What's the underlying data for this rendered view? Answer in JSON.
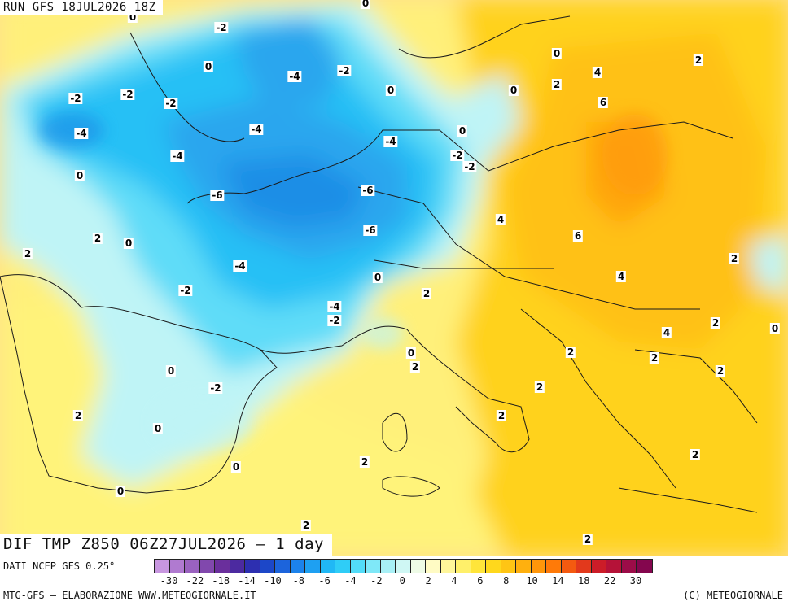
{
  "run_label": "RUN GFS 18JUL2026 18Z",
  "map_title": "DIF TMP Z850 06Z27JUL2026 – 1 day",
  "footer": {
    "source": "DATI NCEP GFS 0.25°",
    "credit": "MTG-GFS – ELABORAZIONE WWW.METEOGIORNALE.IT",
    "copyright": "(C) METEOGIORNALE"
  },
  "scale": {
    "colors": [
      "#c897e0",
      "#b07ad0",
      "#9a62bf",
      "#8148ad",
      "#6a2f9c",
      "#4c2aa0",
      "#2d2fb0",
      "#1c47c8",
      "#1c64dc",
      "#1c82eb",
      "#1ea0f2",
      "#20b8f5",
      "#2fcdf7",
      "#52dcf8",
      "#7fe8f8",
      "#a8f0f6",
      "#cff7f4",
      "#eefbe6",
      "#fffbc4",
      "#fff69a",
      "#fff06a",
      "#ffe53a",
      "#ffd81c",
      "#ffc514",
      "#ffb00e",
      "#ff960a",
      "#ff7a08",
      "#f45a10",
      "#e2391c",
      "#cc1c28",
      "#b51238",
      "#9c0c48",
      "#84064e"
    ],
    "ticks": [
      "-30",
      "-22",
      "-18",
      "-14",
      "-10",
      "-8",
      "-6",
      "-4",
      "-2",
      "0",
      "2",
      "4",
      "6",
      "8",
      "10",
      "14",
      "18",
      "22",
      "30"
    ]
  },
  "contour_labels": [
    {
      "text": "0",
      "lon": 163,
      "lat": 21
    },
    {
      "text": "0",
      "lon": 449,
      "lat": 4
    },
    {
      "text": "-2",
      "lon": 272,
      "lat": 34
    },
    {
      "text": "0",
      "lon": 256,
      "lat": 82
    },
    {
      "text": "-4",
      "lon": 362,
      "lat": 94
    },
    {
      "text": "-2",
      "lon": 423,
      "lat": 87
    },
    {
      "text": "0",
      "lon": 684,
      "lat": 66
    },
    {
      "text": "4",
      "lon": 734,
      "lat": 89
    },
    {
      "text": "2",
      "lon": 858,
      "lat": 74
    },
    {
      "text": "2",
      "lon": 684,
      "lat": 104
    },
    {
      "text": "0",
      "lon": 631,
      "lat": 111
    },
    {
      "text": "0",
      "lon": 480,
      "lat": 111
    },
    {
      "text": "-2",
      "lon": 93,
      "lat": 121
    },
    {
      "text": "-2",
      "lon": 157,
      "lat": 116
    },
    {
      "text": "-2",
      "lon": 210,
      "lat": 127
    },
    {
      "text": "6",
      "lon": 741,
      "lat": 126
    },
    {
      "text": "-4",
      "lon": 100,
      "lat": 164
    },
    {
      "text": "-4",
      "lon": 315,
      "lat": 159
    },
    {
      "text": "0",
      "lon": 568,
      "lat": 161
    },
    {
      "text": "-4",
      "lon": 480,
      "lat": 174
    },
    {
      "text": "-4",
      "lon": 218,
      "lat": 192
    },
    {
      "text": "-2",
      "lon": 562,
      "lat": 191
    },
    {
      "text": "-2",
      "lon": 577,
      "lat": 205
    },
    {
      "text": "0",
      "lon": 98,
      "lat": 216
    },
    {
      "text": "-6",
      "lon": 267,
      "lat": 240
    },
    {
      "text": "-6",
      "lon": 452,
      "lat": 234
    },
    {
      "text": "4",
      "lon": 615,
      "lat": 270
    },
    {
      "text": "6",
      "lon": 710,
      "lat": 290
    },
    {
      "text": "2",
      "lon": 120,
      "lat": 293
    },
    {
      "text": "0",
      "lon": 158,
      "lat": 299
    },
    {
      "text": "-6",
      "lon": 455,
      "lat": 283
    },
    {
      "text": "2",
      "lon": 34,
      "lat": 312
    },
    {
      "text": "2",
      "lon": 902,
      "lat": 318
    },
    {
      "text": "-4",
      "lon": 295,
      "lat": 327
    },
    {
      "text": "0",
      "lon": 464,
      "lat": 341
    },
    {
      "text": "4",
      "lon": 763,
      "lat": 340
    },
    {
      "text": "-2",
      "lon": 228,
      "lat": 357
    },
    {
      "text": "2",
      "lon": 524,
      "lat": 361
    },
    {
      "text": "-4",
      "lon": 411,
      "lat": 377
    },
    {
      "text": "-2",
      "lon": 411,
      "lat": 394
    },
    {
      "text": "2",
      "lon": 879,
      "lat": 397
    },
    {
      "text": "4",
      "lon": 819,
      "lat": 409
    },
    {
      "text": "0",
      "lon": 952,
      "lat": 404
    },
    {
      "text": "0",
      "lon": 505,
      "lat": 434
    },
    {
      "text": "2",
      "lon": 701,
      "lat": 433
    },
    {
      "text": "2",
      "lon": 804,
      "lat": 440
    },
    {
      "text": "2",
      "lon": 510,
      "lat": 451
    },
    {
      "text": "0",
      "lon": 210,
      "lat": 456
    },
    {
      "text": "2",
      "lon": 885,
      "lat": 456
    },
    {
      "text": "-2",
      "lon": 265,
      "lat": 477
    },
    {
      "text": "2",
      "lon": 663,
      "lat": 476
    },
    {
      "text": "2",
      "lon": 96,
      "lat": 511
    },
    {
      "text": "2",
      "lon": 616,
      "lat": 511
    },
    {
      "text": "0",
      "lon": 194,
      "lat": 527
    },
    {
      "text": "2",
      "lon": 854,
      "lat": 559
    },
    {
      "text": "2",
      "lon": 448,
      "lat": 568
    },
    {
      "text": "0",
      "lon": 290,
      "lat": 574
    },
    {
      "text": "0",
      "lon": 148,
      "lat": 604
    },
    {
      "text": "2",
      "lon": 376,
      "lat": 646
    },
    {
      "text": "2",
      "lon": 722,
      "lat": 663
    }
  ]
}
